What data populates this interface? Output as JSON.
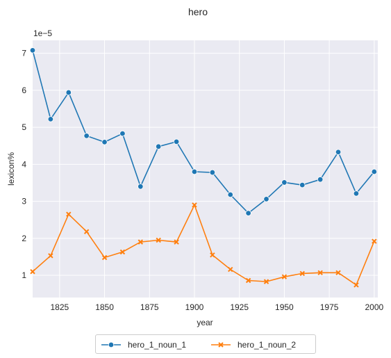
{
  "chart_data": {
    "type": "line",
    "title": "hero",
    "xlabel": "year",
    "ylabel": "lexicon%",
    "offset_text": "1e−5",
    "xlim": [
      1810,
      2002
    ],
    "ylim": [
      0.4,
      7.35
    ],
    "xticks": [
      1825,
      1850,
      1875,
      1900,
      1925,
      1950,
      1975,
      2000
    ],
    "xtick_labels": [
      "1825",
      "1850",
      "1875",
      "1900",
      "1925",
      "1950",
      "1975",
      "2000"
    ],
    "yticks": [
      1,
      2,
      3,
      4,
      5,
      6,
      7
    ],
    "ytick_labels": [
      "1",
      "2",
      "3",
      "4",
      "5",
      "6",
      "7"
    ],
    "grid": true,
    "legend_position": "bottom-center",
    "x": [
      1810,
      1820,
      1830,
      1840,
      1850,
      1860,
      1870,
      1880,
      1890,
      1900,
      1910,
      1920,
      1930,
      1940,
      1950,
      1960,
      1970,
      1980,
      1990,
      2000
    ],
    "series": [
      {
        "name": "hero_1_noun_1",
        "color": "#1f77b4",
        "marker": "circle",
        "values": [
          7.08,
          5.22,
          5.94,
          4.77,
          4.6,
          4.83,
          3.4,
          4.48,
          4.61,
          3.8,
          3.78,
          3.18,
          2.68,
          3.06,
          3.51,
          3.44,
          3.59,
          4.33,
          3.21,
          3.8
        ]
      },
      {
        "name": "hero_1_noun_2",
        "color": "#ff7f0e",
        "marker": "x",
        "values": [
          1.1,
          1.53,
          2.65,
          2.18,
          1.48,
          1.63,
          1.9,
          1.95,
          1.9,
          2.9,
          1.55,
          1.16,
          0.86,
          0.83,
          0.96,
          1.05,
          1.07,
          1.07,
          0.74,
          1.92
        ]
      }
    ]
  },
  "colors": {
    "plot_background": "#eaeaf2",
    "grid": "#ffffff",
    "text": "#262626"
  }
}
